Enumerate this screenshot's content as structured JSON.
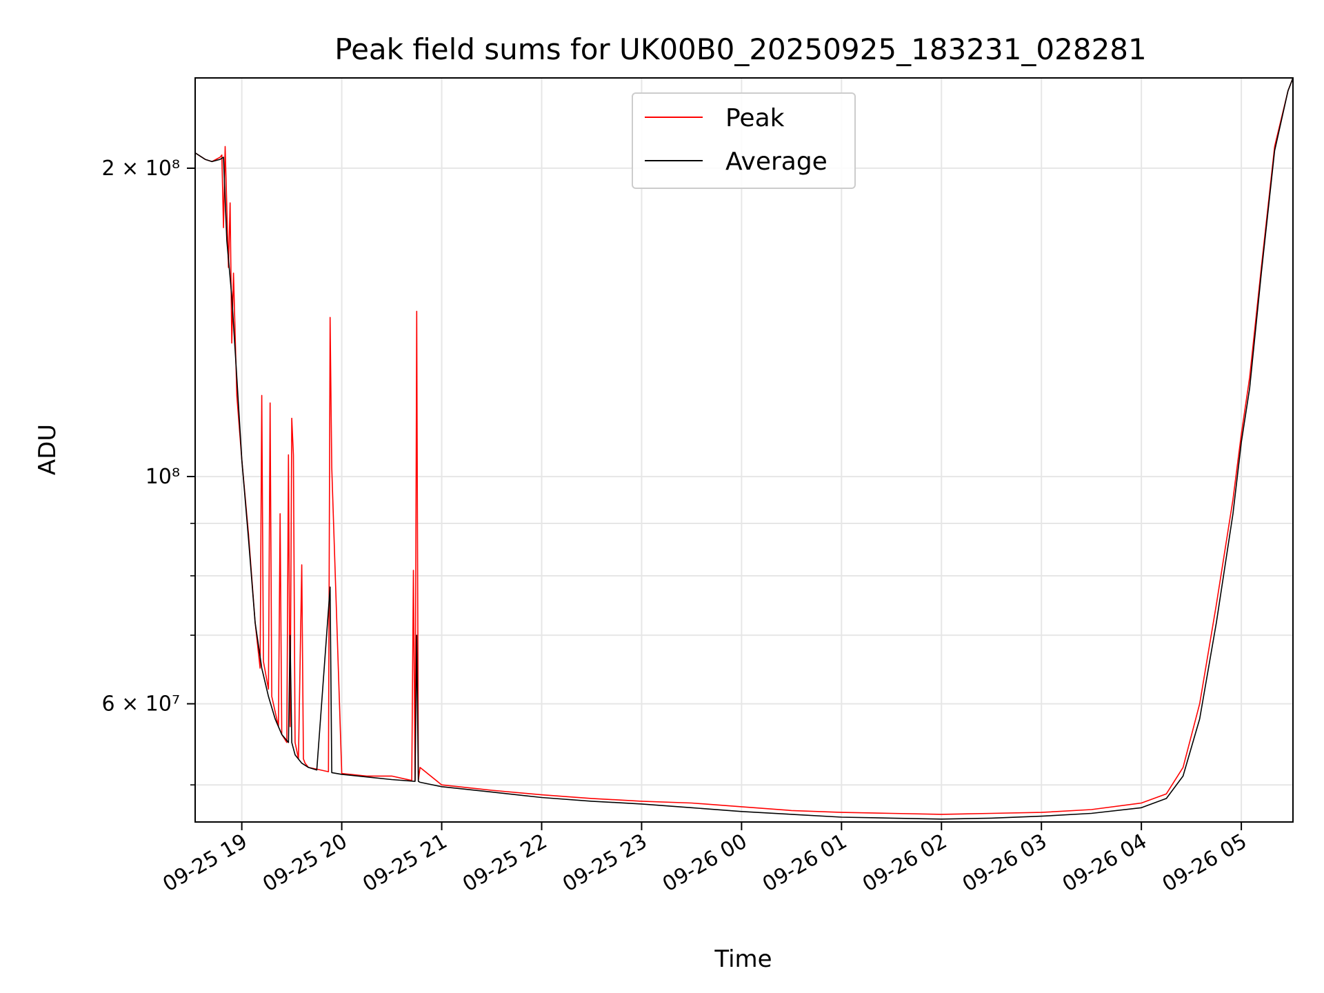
{
  "chart_data": {
    "type": "line",
    "title": "Peak field sums for UK00B0_20250925_183231_028281",
    "xlabel": "Time",
    "ylabel": "ADU",
    "yscale": "log",
    "grid": true,
    "legend_placement": "top-center",
    "xlim": [
      "2025-09-25 18:32",
      "2025-09-26 05:31"
    ],
    "ylim": [
      46000000,
      245000000
    ],
    "x_ticks": [
      {
        "t": "2025-09-25 19:00",
        "label": "09-25 19"
      },
      {
        "t": "2025-09-25 20:00",
        "label": "09-25 20"
      },
      {
        "t": "2025-09-25 21:00",
        "label": "09-25 21"
      },
      {
        "t": "2025-09-25 22:00",
        "label": "09-25 22"
      },
      {
        "t": "2025-09-25 23:00",
        "label": "09-25 23"
      },
      {
        "t": "2025-09-26 00:00",
        "label": "09-26 00"
      },
      {
        "t": "2025-09-26 01:00",
        "label": "09-26 01"
      },
      {
        "t": "2025-09-26 02:00",
        "label": "09-26 02"
      },
      {
        "t": "2025-09-26 03:00",
        "label": "09-26 03"
      },
      {
        "t": "2025-09-26 04:00",
        "label": "09-26 04"
      },
      {
        "t": "2025-09-26 05:00",
        "label": "09-26 05"
      }
    ],
    "y_ticks": [
      {
        "v": 200000000,
        "label": "2 × 10⁸",
        "major": true
      },
      {
        "v": 100000000,
        "label": "10⁸",
        "major": true
      },
      {
        "v": 60000000,
        "label": "6 × 10⁷",
        "major": false
      }
    ],
    "y_minor_ticks": [
      50000000,
      70000000,
      80000000,
      90000000
    ],
    "series": [
      {
        "name": "Peak",
        "color": "#ff0000",
        "x": [
          "2025-09-25 18:32",
          "2025-09-25 18:38",
          "2025-09-25 18:42",
          "2025-09-25 18:47",
          "2025-09-25 18:48",
          "2025-09-25 18:49",
          "2025-09-25 18:50",
          "2025-09-25 18:52",
          "2025-09-25 18:53",
          "2025-09-25 18:54",
          "2025-09-25 18:55",
          "2025-09-25 18:57",
          "2025-09-25 19:00",
          "2025-09-25 19:04",
          "2025-09-25 19:08",
          "2025-09-25 19:11",
          "2025-09-25 19:12",
          "2025-09-25 19:13",
          "2025-09-25 19:16",
          "2025-09-25 19:17",
          "2025-09-25 19:18",
          "2025-09-25 19:22",
          "2025-09-25 19:23",
          "2025-09-25 19:24",
          "2025-09-25 19:27",
          "2025-09-25 19:28",
          "2025-09-25 19:29",
          "2025-09-25 19:30",
          "2025-09-25 19:31",
          "2025-09-25 19:32",
          "2025-09-25 19:33",
          "2025-09-25 19:34",
          "2025-09-25 19:36",
          "2025-09-25 19:37",
          "2025-09-25 19:38",
          "2025-09-25 19:40",
          "2025-09-25 19:45",
          "2025-09-25 19:52",
          "2025-09-25 19:53",
          "2025-09-25 19:54",
          "2025-09-25 20:00",
          "2025-09-25 20:15",
          "2025-09-25 20:30",
          "2025-09-25 20:42",
          "2025-09-25 20:43",
          "2025-09-25 20:44",
          "2025-09-25 20:45",
          "2025-09-25 20:46",
          "2025-09-25 20:47",
          "2025-09-25 21:00",
          "2025-09-25 21:30",
          "2025-09-25 22:00",
          "2025-09-25 22:30",
          "2025-09-25 23:00",
          "2025-09-25 23:30",
          "2025-09-26 00:00",
          "2025-09-26 00:30",
          "2025-09-26 01:00",
          "2025-09-26 01:30",
          "2025-09-26 02:00",
          "2025-09-26 02:30",
          "2025-09-26 03:00",
          "2025-09-26 03:30",
          "2025-09-26 04:00",
          "2025-09-26 04:15",
          "2025-09-26 04:25",
          "2025-09-26 04:35",
          "2025-09-26 04:45",
          "2025-09-26 04:55",
          "2025-09-26 05:00",
          "2025-09-26 05:05",
          "2025-09-26 05:12",
          "2025-09-26 05:20",
          "2025-09-26 05:28",
          "2025-09-26 05:31"
        ],
        "y": [
          207000000,
          204000000,
          203000000,
          205000000,
          206000000,
          175000000,
          210000000,
          160000000,
          185000000,
          135000000,
          158000000,
          120000000,
          104000000,
          88000000,
          72000000,
          65000000,
          120000000,
          66000000,
          62000000,
          118000000,
          61000000,
          57000000,
          92000000,
          56000000,
          55000000,
          105000000,
          57000000,
          114000000,
          105000000,
          55000000,
          54000000,
          53000000,
          82000000,
          53000000,
          52500000,
          52000000,
          51800000,
          51500000,
          143000000,
          102000000,
          51300000,
          51000000,
          51000000,
          50500000,
          81000000,
          50500000,
          145000000,
          50500000,
          52000000,
          50000000,
          49400000,
          48900000,
          48500000,
          48200000,
          48000000,
          47600000,
          47200000,
          47000000,
          46900000,
          46800000,
          46900000,
          47000000,
          47300000,
          48000000,
          49000000,
          52000000,
          60000000,
          75000000,
          95000000,
          110000000,
          125000000,
          160000000,
          210000000,
          238000000,
          245000000
        ]
      },
      {
        "name": "Average",
        "color": "#000000",
        "x": [
          "2025-09-25 18:32",
          "2025-09-25 18:38",
          "2025-09-25 18:42",
          "2025-09-25 18:47",
          "2025-09-25 18:49",
          "2025-09-25 18:51",
          "2025-09-25 18:54",
          "2025-09-25 18:57",
          "2025-09-25 19:00",
          "2025-09-25 19:04",
          "2025-09-25 19:08",
          "2025-09-25 19:12",
          "2025-09-25 19:16",
          "2025-09-25 19:20",
          "2025-09-25 19:24",
          "2025-09-25 19:28",
          "2025-09-25 19:29",
          "2025-09-25 19:30",
          "2025-09-25 19:32",
          "2025-09-25 19:36",
          "2025-09-25 19:40",
          "2025-09-25 19:45",
          "2025-09-25 19:53",
          "2025-09-25 19:54",
          "2025-09-25 20:00",
          "2025-09-25 20:15",
          "2025-09-25 20:30",
          "2025-09-25 20:44",
          "2025-09-25 20:45",
          "2025-09-25 20:46",
          "2025-09-25 20:47",
          "2025-09-25 21:00",
          "2025-09-25 21:30",
          "2025-09-25 22:00",
          "2025-09-25 22:30",
          "2025-09-25 23:00",
          "2025-09-25 23:30",
          "2025-09-26 00:00",
          "2025-09-26 00:30",
          "2025-09-26 01:00",
          "2025-09-26 01:30",
          "2025-09-26 02:00",
          "2025-09-26 02:30",
          "2025-09-26 03:00",
          "2025-09-26 03:30",
          "2025-09-26 04:00",
          "2025-09-26 04:15",
          "2025-09-26 04:25",
          "2025-09-26 04:35",
          "2025-09-26 04:45",
          "2025-09-26 04:55",
          "2025-09-26 05:00",
          "2025-09-26 05:05",
          "2025-09-26 05:12",
          "2025-09-26 05:20",
          "2025-09-26 05:28",
          "2025-09-26 05:31"
        ],
        "y": [
          207000000,
          204000000,
          203000000,
          204000000,
          205000000,
          170000000,
          150000000,
          125000000,
          104000000,
          87000000,
          72000000,
          65000000,
          61000000,
          58000000,
          56000000,
          55000000,
          70000000,
          55000000,
          53500000,
          52500000,
          52000000,
          51700000,
          78000000,
          51400000,
          51200000,
          50900000,
          50600000,
          50400000,
          70000000,
          50400000,
          50300000,
          49800000,
          49200000,
          48600000,
          48200000,
          47900000,
          47500000,
          47100000,
          46800000,
          46500000,
          46400000,
          46300000,
          46400000,
          46600000,
          46900000,
          47500000,
          48500000,
          51000000,
          58000000,
          72000000,
          92000000,
          108000000,
          122000000,
          158000000,
          208000000,
          238000000,
          245000000
        ]
      }
    ]
  }
}
